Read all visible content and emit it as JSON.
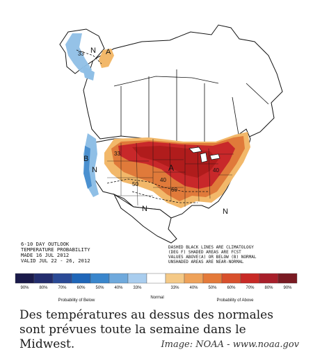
{
  "map": {
    "labels": {
      "N_alaska": "N",
      "A_alaska": "A",
      "B_pacific": "B",
      "N_pacific": "N",
      "A_central": "A",
      "N_southwest": "N",
      "N_southeast": "N",
      "c33": "33",
      "c40_a": "40",
      "c40_b": "40",
      "c50": "50",
      "c60": "60",
      "c33_b": "33"
    },
    "outlook_title": [
      "6-10 DAY OUTLOOK",
      "TEMPERATURE PROBABILITY",
      "MADE  16 JUL 2012",
      "VALID  JUL 22 - 26, 2012"
    ],
    "notes": [
      "DASHED BLACK LINES ARE CLIMATOLOGY",
      "(DEG F) SHADED AREAS ARE FCST",
      "VALUES ABOVE(A) OR BELOW (B) NORMAL",
      "UNSHADED AREAS ARE NEAR-NORMAL"
    ],
    "colors": {
      "land": "#ffffff",
      "border": "#111111",
      "below_light": "#8fbfe6",
      "below_mid": "#4a90d0",
      "above_light": "#f2b86a",
      "above_mid": "#e07a3a",
      "above_strong": "#c8282a",
      "above_dark": "#b01c1c"
    }
  },
  "legend": {
    "swatches": [
      {
        "label": "90%",
        "color": "#1a1a4a"
      },
      {
        "label": "80%",
        "color": "#232d6e"
      },
      {
        "label": "70%",
        "color": "#2a4a96"
      },
      {
        "label": "60%",
        "color": "#1f66b8"
      },
      {
        "label": "50%",
        "color": "#3a86cc"
      },
      {
        "label": "40%",
        "color": "#6fa9dc"
      },
      {
        "label": "33%",
        "color": "#a9cdee"
      },
      {
        "label": "",
        "color": "#ffffff"
      },
      {
        "label": "33%",
        "color": "#f4c987"
      },
      {
        "label": "40%",
        "color": "#eea25a"
      },
      {
        "label": "50%",
        "color": "#e47a3a"
      },
      {
        "label": "60%",
        "color": "#d8502c"
      },
      {
        "label": "70%",
        "color": "#c82a26"
      },
      {
        "label": "80%",
        "color": "#a81f2a"
      },
      {
        "label": "90%",
        "color": "#7a1a22"
      }
    ],
    "below_label": "Probability of Below",
    "normal_label": "Normal",
    "above_label": "Probability of Above"
  },
  "caption": {
    "line1": "Des températures au dessus des normales",
    "line2": "sont prévues toute la semaine dans le",
    "line3": "Midwest.",
    "credit": "Image: NOAA - www.noaa.gov"
  }
}
